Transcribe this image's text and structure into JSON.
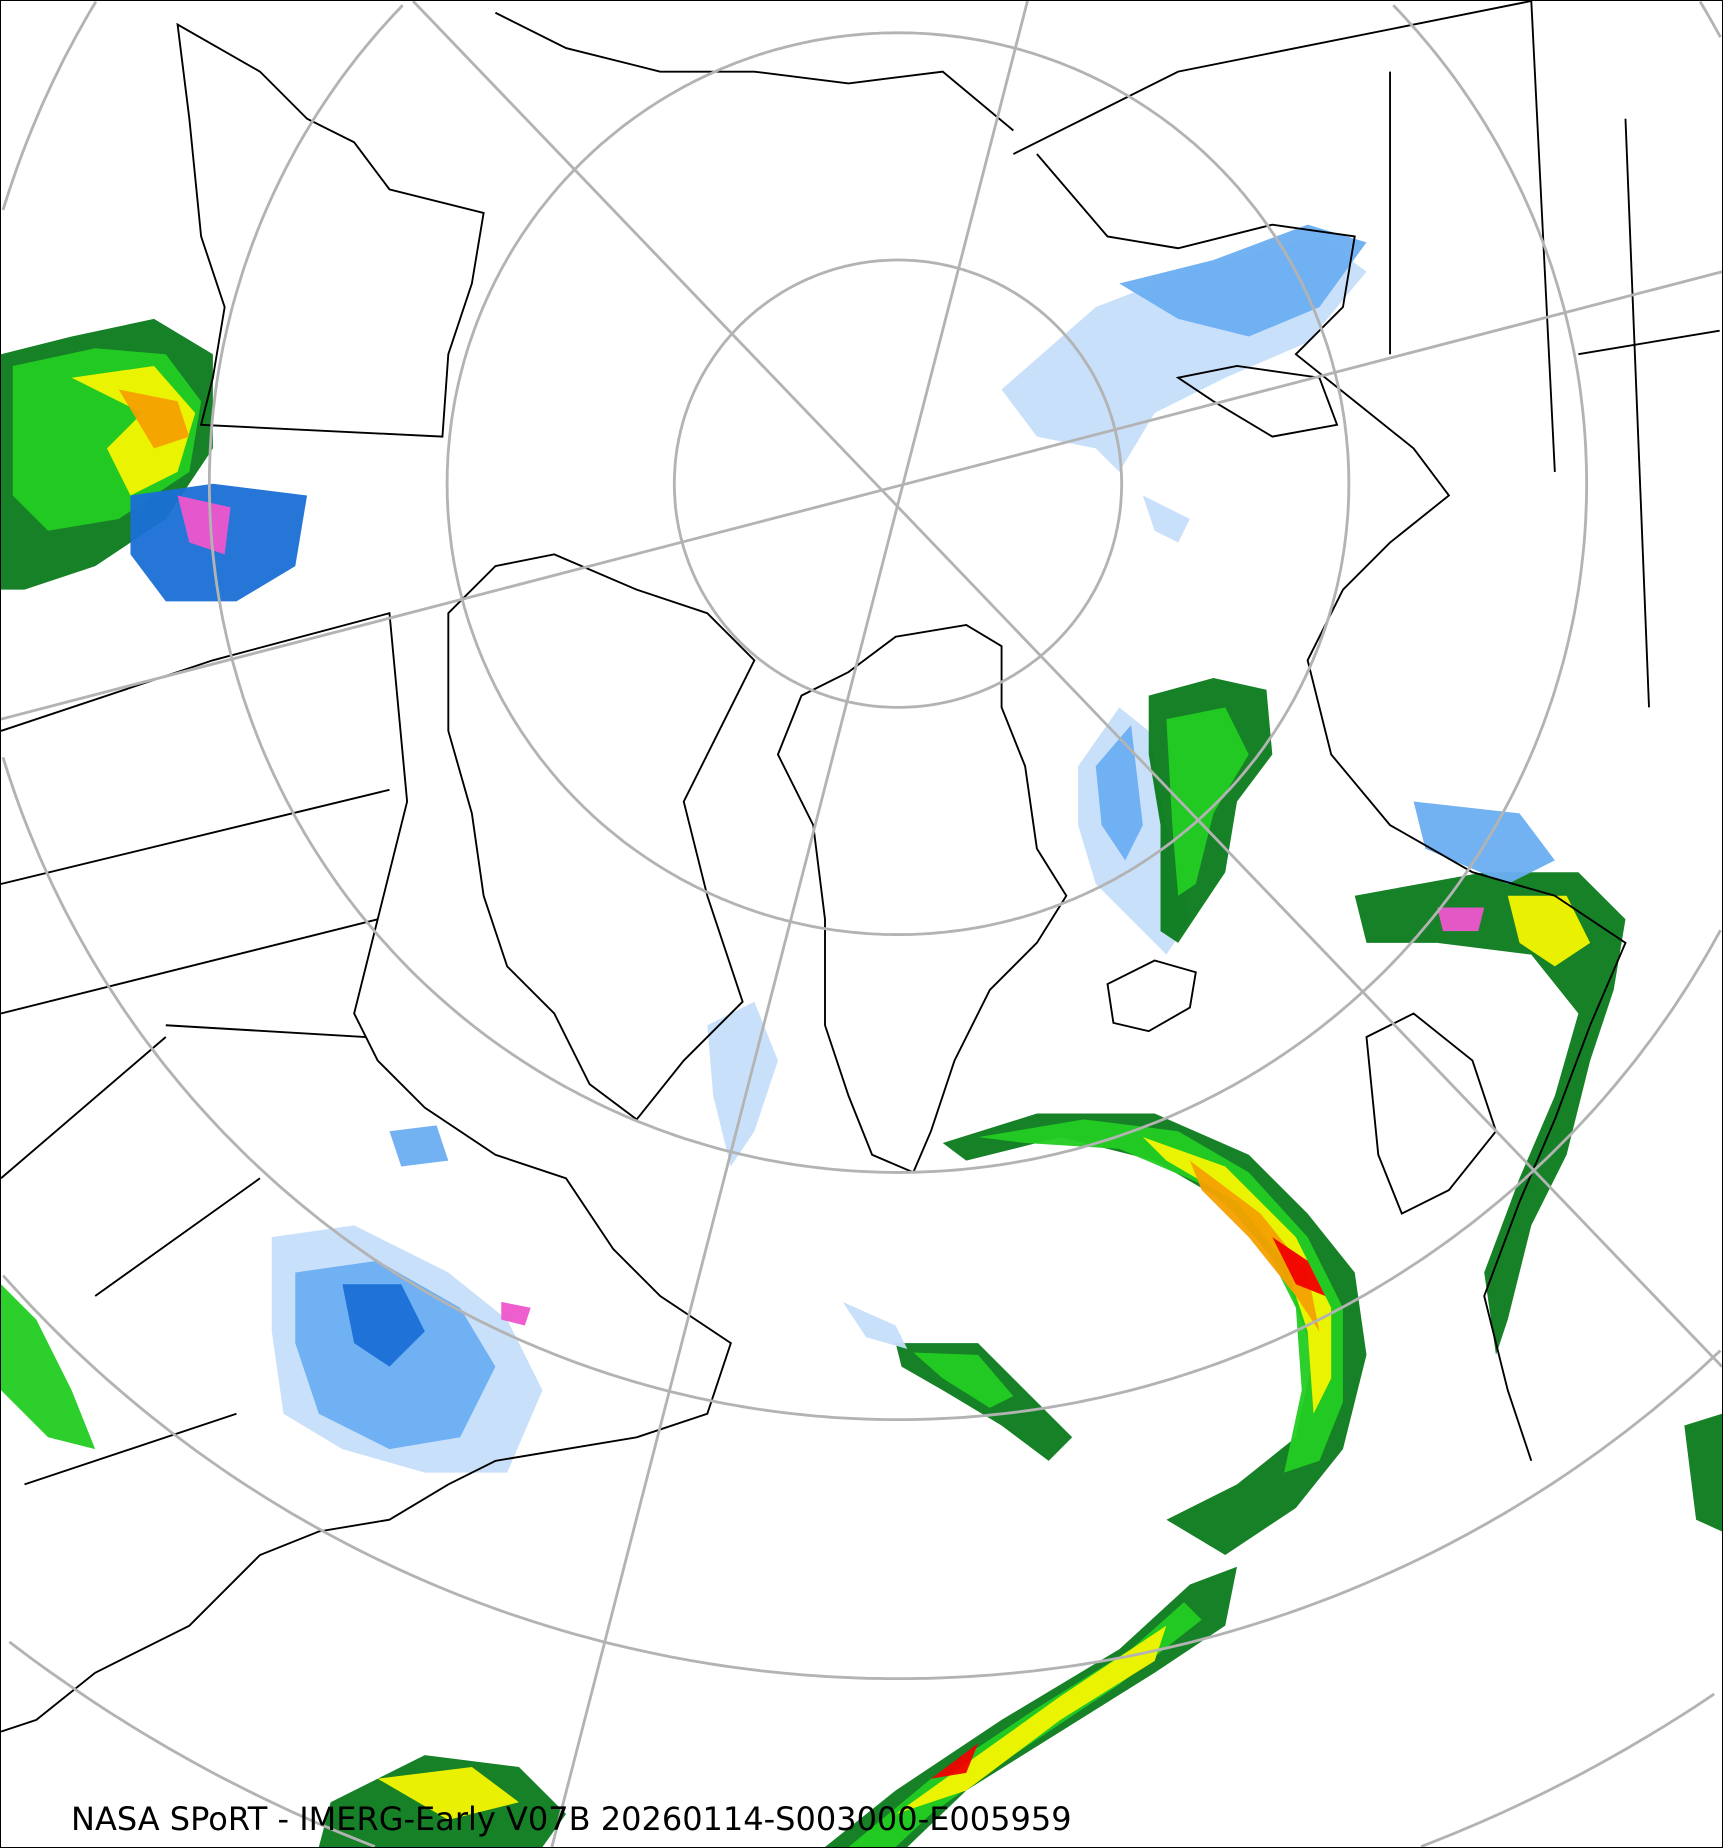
{
  "caption": "NASA SPoRT - IMERG-Early V07B 20260114-S003000-E005959",
  "projection": "north-polar-stereographic",
  "colors": {
    "graticule": "#b3b3b3",
    "coastline": "#000000",
    "precip_light_blue": "#c6defa",
    "precip_blue": "#6aaef2",
    "precip_dark_blue": "#1a6fd6",
    "precip_pink": "#ee55cc",
    "precip_dark_green": "#0a7a1a",
    "precip_green": "#22cc22",
    "precip_light_green": "#99ee22",
    "precip_yellow": "#f5f500",
    "precip_orange": "#f5a000",
    "precip_red": "#f00000"
  }
}
